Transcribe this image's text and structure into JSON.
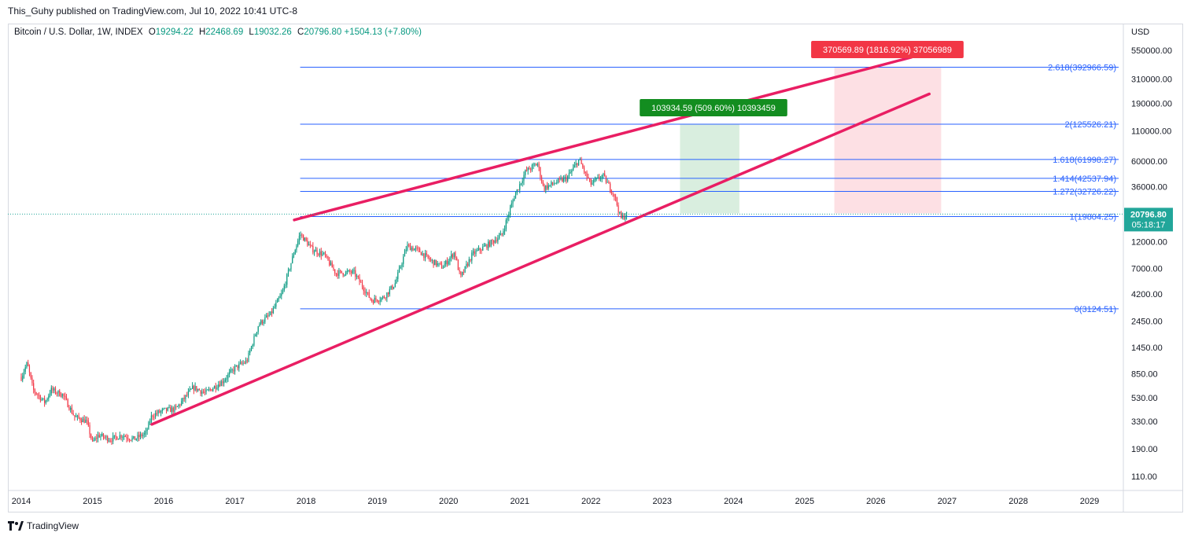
{
  "header": {
    "publisher": "This_Guhy published on TradingView.com, Jul 10, 2022 10:41 UTC-8"
  },
  "legend": {
    "symbol": "Bitcoin / U.S. Dollar, 1W, INDEX",
    "open_label": "O",
    "open": "19294.22",
    "high_label": "H",
    "high": "22468.69",
    "low_label": "L",
    "low": "19032.26",
    "close_label": "C",
    "close": "20796.80",
    "change": "+1504.13 (+7.80%)"
  },
  "price_axis": {
    "currency": "USD",
    "ticks": [
      "550000.00",
      "310000.00",
      "190000.00",
      "110000.00",
      "60000.00",
      "36000.00",
      "12000.00",
      "7000.00",
      "4200.00",
      "2450.00",
      "1450.00",
      "850.00",
      "530.00",
      "330.00",
      "190.00",
      "110.00"
    ],
    "last_price": "20796.80",
    "countdown": "05:18:17"
  },
  "time_axis": {
    "labels": [
      "2014",
      "2015",
      "2016",
      "2017",
      "2018",
      "2019",
      "2020",
      "2021",
      "2022",
      "2023",
      "2024",
      "2025",
      "2026",
      "2027",
      "2028",
      "2029"
    ]
  },
  "colors": {
    "up": "#089981",
    "down": "#f23645",
    "fib": "#2962ff",
    "trend": "#e91e63",
    "profit_zone": "#d9eedf",
    "loss_zone": "#fde0e4",
    "profit_badge": "#138d20",
    "loss_badge": "#f23645",
    "price_tag": "#22a69a"
  },
  "chart_data": {
    "type": "candlestick",
    "symbol": "Bitcoin / U.S. Dollar",
    "interval": "1W",
    "y_scale": "log",
    "y_range": [
      80,
      950000
    ],
    "x_range": [
      "2014-01",
      "2029-12"
    ],
    "weekly_closes": [
      {
        "date": "2014-01",
        "close": 800
      },
      {
        "date": "2014-02",
        "close": 1050
      },
      {
        "date": "2014-03",
        "close": 620
      },
      {
        "date": "2014-05",
        "close": 480
      },
      {
        "date": "2014-06",
        "close": 620
      },
      {
        "date": "2014-08",
        "close": 560
      },
      {
        "date": "2014-10",
        "close": 360
      },
      {
        "date": "2014-12",
        "close": 330
      },
      {
        "date": "2015-01",
        "close": 215
      },
      {
        "date": "2015-02",
        "close": 250
      },
      {
        "date": "2015-04",
        "close": 230
      },
      {
        "date": "2015-06",
        "close": 250
      },
      {
        "date": "2015-08",
        "close": 230
      },
      {
        "date": "2015-10",
        "close": 260
      },
      {
        "date": "2015-11",
        "close": 370
      },
      {
        "date": "2016-01",
        "close": 410
      },
      {
        "date": "2016-03",
        "close": 420
      },
      {
        "date": "2016-06",
        "close": 650
      },
      {
        "date": "2016-08",
        "close": 580
      },
      {
        "date": "2016-11",
        "close": 740
      },
      {
        "date": "2017-01",
        "close": 960
      },
      {
        "date": "2017-03",
        "close": 1100
      },
      {
        "date": "2017-05",
        "close": 2300
      },
      {
        "date": "2017-07",
        "close": 2800
      },
      {
        "date": "2017-09",
        "close": 4300
      },
      {
        "date": "2017-11",
        "close": 9800
      },
      {
        "date": "2017-12",
        "close": 14000
      },
      {
        "date": "2018-02",
        "close": 10300
      },
      {
        "date": "2018-04",
        "close": 9200
      },
      {
        "date": "2018-06",
        "close": 6400
      },
      {
        "date": "2018-09",
        "close": 6500
      },
      {
        "date": "2018-12",
        "close": 3700
      },
      {
        "date": "2019-02",
        "close": 3900
      },
      {
        "date": "2019-04",
        "close": 5200
      },
      {
        "date": "2019-06",
        "close": 11000
      },
      {
        "date": "2019-08",
        "close": 10000
      },
      {
        "date": "2019-10",
        "close": 8200
      },
      {
        "date": "2019-12",
        "close": 7200
      },
      {
        "date": "2020-02",
        "close": 9700
      },
      {
        "date": "2020-03",
        "close": 5800
      },
      {
        "date": "2020-05",
        "close": 9300
      },
      {
        "date": "2020-08",
        "close": 11600
      },
      {
        "date": "2020-10",
        "close": 13800
      },
      {
        "date": "2020-12",
        "close": 29000
      },
      {
        "date": "2021-02",
        "close": 49000
      },
      {
        "date": "2021-04",
        "close": 57000
      },
      {
        "date": "2021-05",
        "close": 35000
      },
      {
        "date": "2021-07",
        "close": 39000
      },
      {
        "date": "2021-09",
        "close": 43000
      },
      {
        "date": "2021-11",
        "close": 62000
      },
      {
        "date": "2021-12",
        "close": 47000
      },
      {
        "date": "2022-01",
        "close": 38000
      },
      {
        "date": "2022-03",
        "close": 45000
      },
      {
        "date": "2022-05",
        "close": 30000
      },
      {
        "date": "2022-06",
        "close": 19000
      },
      {
        "date": "2022-07",
        "close": 20796.8
      }
    ],
    "fib_levels": [
      {
        "label": "0(3124.51)",
        "value": 3124.51
      },
      {
        "label": "1(19804.25)",
        "value": 19804.25
      },
      {
        "label": "1.272(32726.22)",
        "value": 32726.22
      },
      {
        "label": "1.414(42537.94)",
        "value": 42537.94
      },
      {
        "label": "1.618(61998.27)",
        "value": 61998.27
      },
      {
        "label": "2(125526.21)",
        "value": 125526.21
      },
      {
        "label": "2.618(392966.59)",
        "value": 392966.59
      }
    ],
    "annotations": {
      "profit_badge": "103934.59 (509.60%) 10393459",
      "loss_badge": "370569.89 (1816.92%) 37056989"
    },
    "last_price": 20796.8
  }
}
